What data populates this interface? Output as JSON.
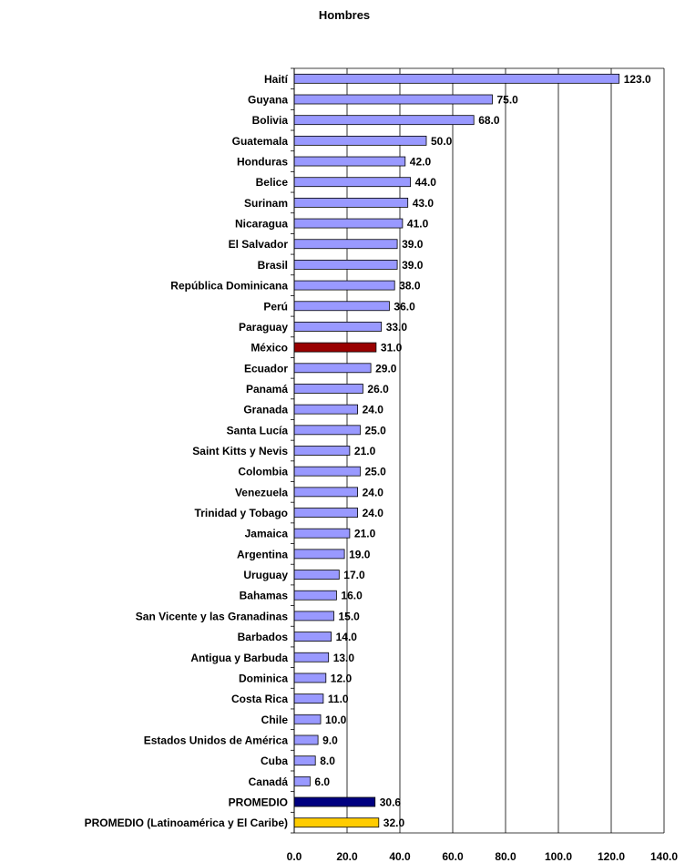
{
  "chart_data": {
    "type": "bar",
    "orientation": "horizontal",
    "title": "Hombres",
    "xlabel": "",
    "ylabel": "",
    "xlim": [
      0,
      140
    ],
    "x_ticks": [
      "0.0",
      "20.0",
      "40.0",
      "60.0",
      "80.0",
      "100.0",
      "120.0",
      "140.0"
    ],
    "grid": "vertical",
    "legend": "none",
    "colors": {
      "default": "#9999ff",
      "highlight": "#990000",
      "average": "#000080",
      "regional_average": "#ffcc00",
      "border": "#000000"
    },
    "categories": [
      "Haití",
      "Guyana",
      "Bolivia",
      "Guatemala",
      "Honduras",
      "Belice",
      "Surinam",
      "Nicaragua",
      "El Salvador",
      "Brasil",
      "República Dominicana",
      "Perú",
      "Paraguay",
      "México",
      "Ecuador",
      "Panamá",
      "Granada",
      "Santa Lucía",
      "Saint Kitts y Nevis",
      "Colombia",
      "Venezuela",
      "Trinidad y Tobago",
      "Jamaica",
      "Argentina",
      "Uruguay",
      "Bahamas",
      "San Vicente y las Granadinas",
      "Barbados",
      "Antigua y Barbuda",
      "Dominica",
      "Costa Rica",
      "Chile",
      "Estados Unidos de América",
      "Cuba",
      "Canadá",
      "PROMEDIO",
      "PROMEDIO (Latinoamérica y El Caribe)"
    ],
    "values": [
      123,
      75,
      68,
      50,
      42,
      44,
      43,
      41,
      39,
      39,
      38,
      36,
      33,
      31,
      29,
      26,
      24,
      25,
      21,
      25,
      24,
      24,
      21,
      19,
      17,
      16,
      15,
      14,
      13,
      12,
      11,
      10,
      9,
      8,
      6,
      30.6,
      32
    ],
    "value_labels": [
      "123.0",
      "75.0",
      "68.0",
      "50.0",
      "42.0",
      "44.0",
      "43.0",
      "41.0",
      "39.0",
      "39.0",
      "38.0",
      "36.0",
      "33.0",
      "31.0",
      "29.0",
      "26.0",
      "24.0",
      "25.0",
      "21.0",
      "25.0",
      "24.0",
      "24.0",
      "21.0",
      "19.0",
      "17.0",
      "16.0",
      "15.0",
      "14.0",
      "13.0",
      "12.0",
      "11.0",
      "10.0",
      "9.0",
      "8.0",
      "6.0",
      "30.6",
      "32.0"
    ],
    "bar_colors": [
      "default",
      "default",
      "default",
      "default",
      "default",
      "default",
      "default",
      "default",
      "default",
      "default",
      "default",
      "default",
      "default",
      "highlight",
      "default",
      "default",
      "default",
      "default",
      "default",
      "default",
      "default",
      "default",
      "default",
      "default",
      "default",
      "default",
      "default",
      "default",
      "default",
      "default",
      "default",
      "default",
      "default",
      "default",
      "default",
      "average",
      "regional_average"
    ]
  }
}
